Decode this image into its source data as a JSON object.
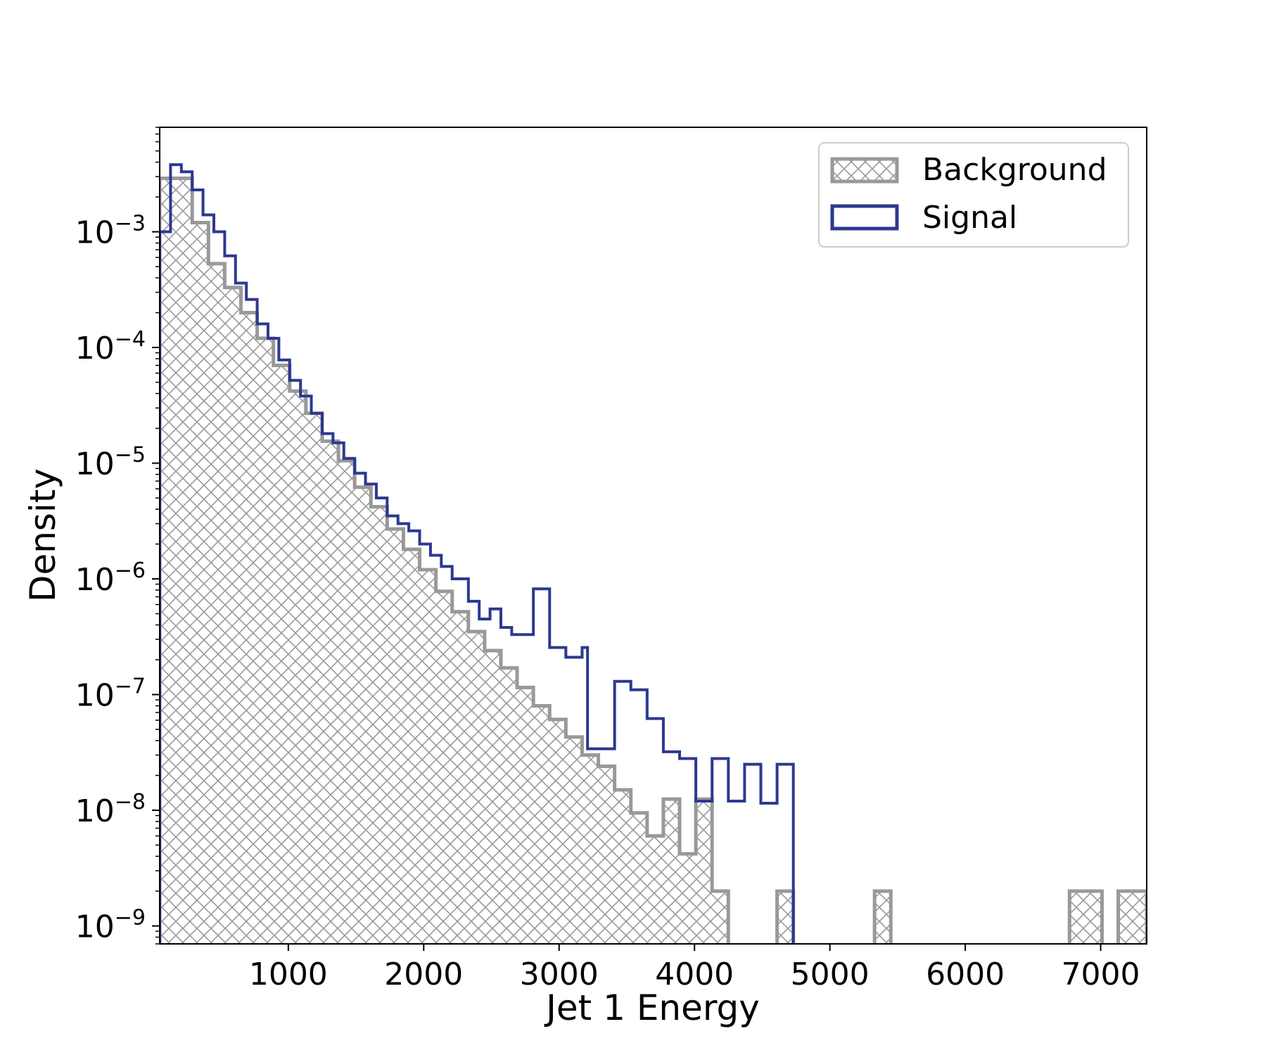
{
  "chart_data": {
    "type": "histogram",
    "title": "",
    "xlabel": "Jet 1 Energy",
    "ylabel": "Density",
    "xlim": [
      50,
      7340
    ],
    "ylim": [
      7e-10,
      0.008
    ],
    "yscale": "log",
    "grid": false,
    "legend_position": "top-right",
    "xticks": [
      1000,
      2000,
      3000,
      4000,
      5000,
      6000,
      7000
    ],
    "xtick_labels": [
      "1000",
      "2000",
      "3000",
      "4000",
      "5000",
      "6000",
      "7000"
    ],
    "yticks": [
      1e-09,
      1e-08,
      1e-07,
      1e-06,
      1e-05,
      0.0001,
      0.001
    ],
    "ytick_labels": [
      {
        "base": "10",
        "exp": "−9"
      },
      {
        "base": "10",
        "exp": "−8"
      },
      {
        "base": "10",
        "exp": "−7"
      },
      {
        "base": "10",
        "exp": "−6"
      },
      {
        "base": "10",
        "exp": "−5"
      },
      {
        "base": "10",
        "exp": "−4"
      },
      {
        "base": "10",
        "exp": "−3"
      }
    ],
    "series": [
      {
        "name": "Background",
        "style": "hatched-fill",
        "color": "#999999",
        "bins": [
          [
            50,
            170,
            0.0029
          ],
          [
            170,
            290,
            0.0029
          ],
          [
            290,
            410,
            0.0012
          ],
          [
            410,
            530,
            0.00053
          ],
          [
            530,
            650,
            0.00033
          ],
          [
            650,
            770,
            0.0002
          ],
          [
            770,
            890,
            0.00012
          ],
          [
            890,
            1010,
            7e-05
          ],
          [
            1010,
            1130,
            4.2e-05
          ],
          [
            1130,
            1250,
            2.7e-05
          ],
          [
            1250,
            1370,
            1.55e-05
          ],
          [
            1370,
            1490,
            1.05e-05
          ],
          [
            1490,
            1610,
            6.2e-06
          ],
          [
            1610,
            1730,
            4.2e-06
          ],
          [
            1730,
            1850,
            2.7e-06
          ],
          [
            1850,
            1970,
            1.8e-06
          ],
          [
            1970,
            2090,
            1.2e-06
          ],
          [
            2090,
            2210,
            7.8e-07
          ],
          [
            2210,
            2330,
            5.2e-07
          ],
          [
            2330,
            2450,
            3.5e-07
          ],
          [
            2450,
            2570,
            2.4e-07
          ],
          [
            2570,
            2690,
            1.7e-07
          ],
          [
            2690,
            2810,
            1.15e-07
          ],
          [
            2810,
            2930,
            8e-08
          ],
          [
            2930,
            3050,
            6.1e-08
          ],
          [
            3050,
            3170,
            4.3e-08
          ],
          [
            3170,
            3290,
            3e-08
          ],
          [
            3290,
            3410,
            2.4e-08
          ],
          [
            3410,
            3530,
            1.5e-08
          ],
          [
            3530,
            3650,
            9.5e-09
          ],
          [
            3650,
            3770,
            6e-09
          ],
          [
            3770,
            3890,
            1.25e-08
          ],
          [
            3890,
            4010,
            4.2e-09
          ],
          [
            4010,
            4130,
            1.25e-08
          ],
          [
            4130,
            4250,
            2e-09
          ],
          [
            4610,
            4730,
            2e-09
          ],
          [
            5330,
            5450,
            2e-09
          ],
          [
            6770,
            7010,
            2e-09
          ],
          [
            7130,
            7340,
            2e-09
          ]
        ]
      },
      {
        "name": "Signal",
        "style": "step-outline",
        "color": "#2b3990",
        "bins": [
          [
            50,
            130,
            0.001
          ],
          [
            130,
            210,
            0.0038
          ],
          [
            210,
            290,
            0.0033
          ],
          [
            290,
            370,
            0.0023
          ],
          [
            370,
            450,
            0.0014
          ],
          [
            450,
            530,
            0.001
          ],
          [
            530,
            610,
            0.00062
          ],
          [
            610,
            690,
            0.00036
          ],
          [
            690,
            770,
            0.00026
          ],
          [
            770,
            850,
            0.00016
          ],
          [
            850,
            930,
            0.00012
          ],
          [
            930,
            1010,
            7.8e-05
          ],
          [
            1010,
            1090,
            5.2e-05
          ],
          [
            1090,
            1170,
            3.8e-05
          ],
          [
            1170,
            1250,
            2.7e-05
          ],
          [
            1250,
            1330,
            1.8e-05
          ],
          [
            1330,
            1410,
            1.5e-05
          ],
          [
            1410,
            1490,
            1.1e-05
          ],
          [
            1490,
            1570,
            8.2e-06
          ],
          [
            1570,
            1650,
            6.6e-06
          ],
          [
            1650,
            1730,
            5e-06
          ],
          [
            1730,
            1810,
            3.5e-06
          ],
          [
            1810,
            1890,
            3e-06
          ],
          [
            1890,
            1970,
            2.6e-06
          ],
          [
            1970,
            2050,
            2e-06
          ],
          [
            2050,
            2130,
            1.6e-06
          ],
          [
            2130,
            2210,
            1.28e-06
          ],
          [
            2210,
            2330,
            1e-06
          ],
          [
            2330,
            2410,
            6.4e-07
          ],
          [
            2410,
            2490,
            4.5e-07
          ],
          [
            2490,
            2570,
            5.5e-07
          ],
          [
            2570,
            2650,
            3.8e-07
          ],
          [
            2650,
            2810,
            3.3e-07
          ],
          [
            2810,
            2930,
            8.2e-07
          ],
          [
            2930,
            3050,
            2.55e-07
          ],
          [
            3050,
            3170,
            2.1e-07
          ],
          [
            3170,
            3210,
            2.55e-07
          ],
          [
            3210,
            3410,
            3.4e-08
          ],
          [
            3410,
            3530,
            1.3e-07
          ],
          [
            3530,
            3650,
            1.1e-07
          ],
          [
            3650,
            3770,
            6.2e-08
          ],
          [
            3770,
            3890,
            3.2e-08
          ],
          [
            3890,
            4010,
            2.8e-08
          ],
          [
            4010,
            4130,
            1.2e-08
          ],
          [
            4130,
            4250,
            2.8e-08
          ],
          [
            4250,
            4370,
            1.2e-08
          ],
          [
            4370,
            4490,
            2.5e-08
          ],
          [
            4490,
            4610,
            1.15e-08
          ],
          [
            4610,
            4730,
            2.5e-08
          ]
        ]
      }
    ]
  }
}
